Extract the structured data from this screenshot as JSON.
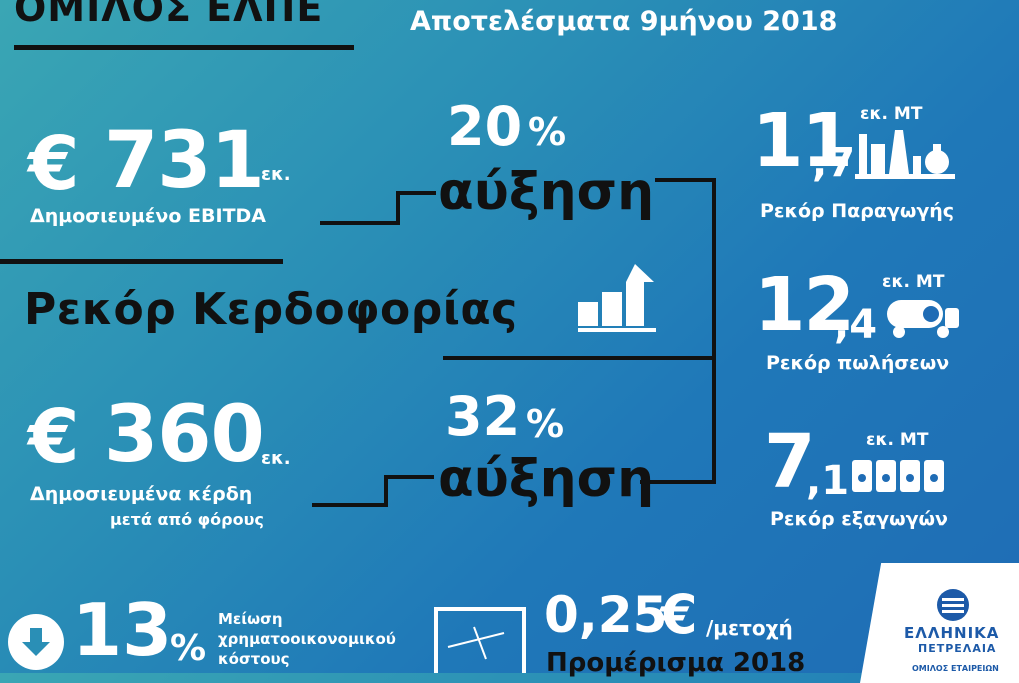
{
  "header": {
    "title": "ΟΜΙΛΟΣ ΕΛΠΕ",
    "subtitle": "Αποτελέσματα 9μήνου 2018"
  },
  "ebitda": {
    "currency": "€",
    "value": "731",
    "unit": "εκ.",
    "label": "Δημοσιευμένο EBITDA",
    "growth_value": "20",
    "growth_sign": "%",
    "growth_word": "αύξηση"
  },
  "headline": {
    "text": "Ρεκόρ Κερδοφορίας"
  },
  "profit": {
    "currency": "€",
    "value": "360",
    "unit": "εκ.",
    "label_line1": "Δημοσιευμένα κέρδη",
    "label_line2": "μετά από φόρους",
    "growth_value": "32",
    "growth_sign": "%",
    "growth_word": "αύξηση"
  },
  "production": {
    "int": "11",
    "dec": ",7",
    "unit": "εκ. MT",
    "label": "Ρεκόρ Παραγωγής"
  },
  "sales": {
    "int": "12",
    "dec": ",4",
    "unit": "εκ. MT",
    "label": "Ρεκόρ πωλήσεων"
  },
  "exports": {
    "int": "7",
    "dec": ",1",
    "unit": "εκ. MT",
    "label": "Ρεκόρ εξαγωγών"
  },
  "cost": {
    "value": "13",
    "sign": "%",
    "line1": "Μείωση",
    "line2": "χρηματοοικονομικού",
    "line3": "κόστους"
  },
  "dividend": {
    "value": "0,25",
    "currency": "€",
    "per": "/μετοχή",
    "label": "Προμέρισμα 2018"
  },
  "logo": {
    "line1": "ΕΛΛΗΝΙΚΑ",
    "line2": "ΠΕΤΡΕΛΑΙΑ",
    "line3": "ΟΜΙΛΟΣ ΕΤΑΙΡΕΙΩΝ"
  },
  "colors": {
    "ink": "#111111",
    "text": "#ffffff",
    "logo_blue": "#1d5aa8"
  }
}
